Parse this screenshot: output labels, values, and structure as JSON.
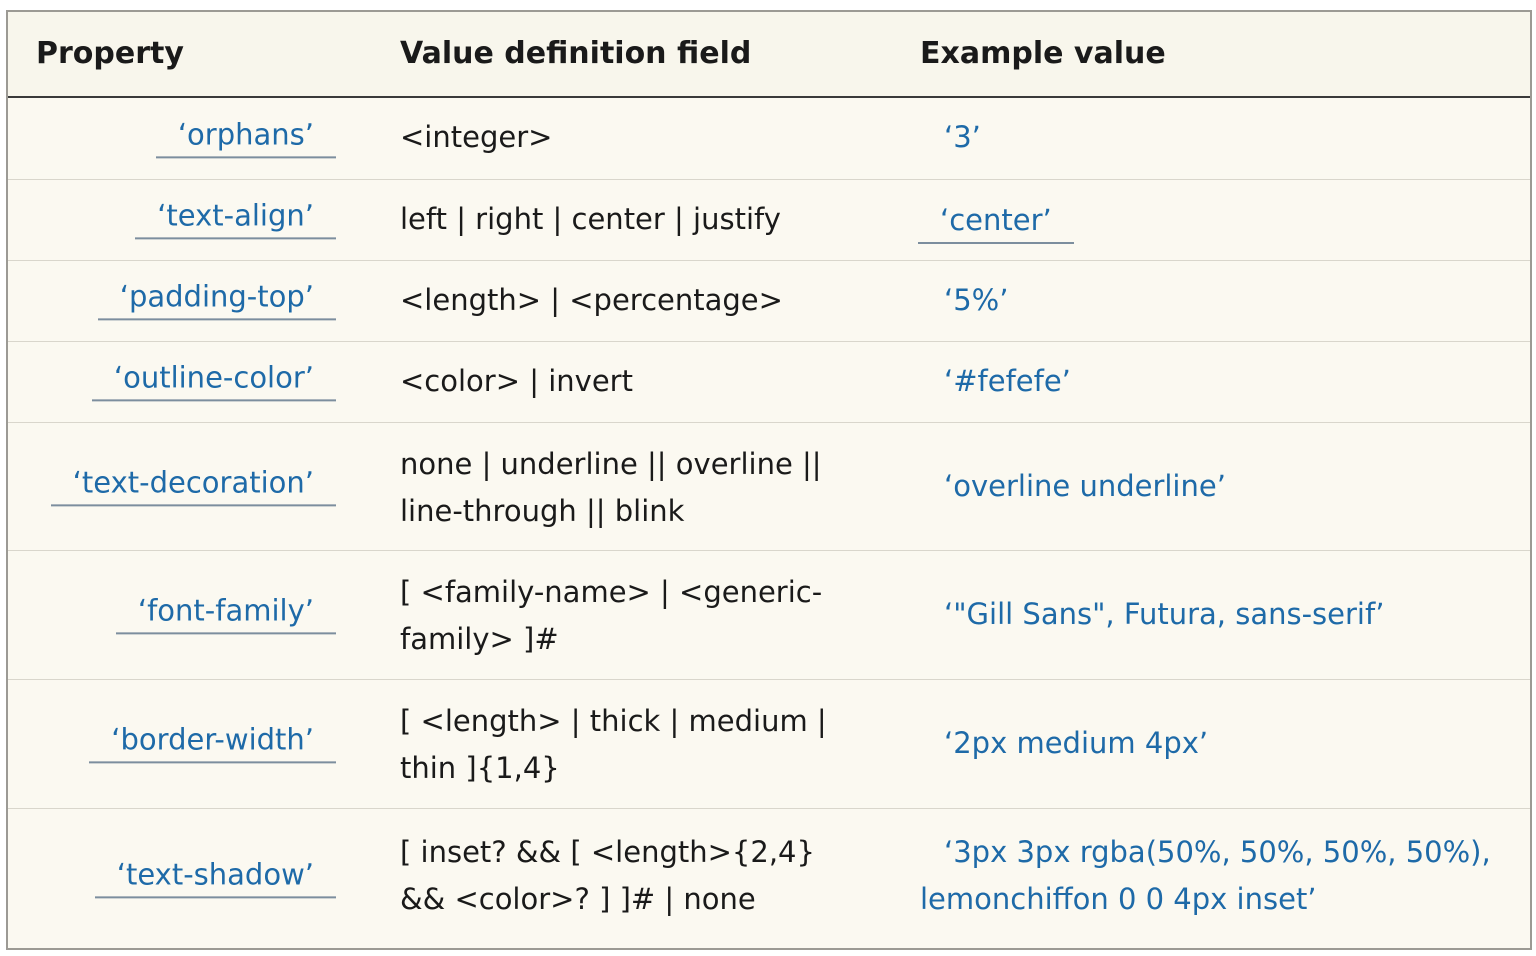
{
  "headers": {
    "property": "Property",
    "definition": "Value definition field",
    "example": "Example value"
  },
  "rows": [
    {
      "property": "‘orphans’",
      "definition": [
        "<integer>"
      ],
      "example": [
        "‘3’"
      ]
    },
    {
      "property": "‘text-align’",
      "definition": [
        "left | right | center | justify"
      ],
      "example": [
        "‘center’"
      ]
    },
    {
      "property": "‘padding-top’",
      "definition": [
        "<length> | <percentage>"
      ],
      "example": [
        "‘5%’"
      ]
    },
    {
      "property": "‘outline-color’",
      "definition": [
        "<color> | invert"
      ],
      "example": [
        "‘#fefefe’"
      ]
    },
    {
      "property": "‘text-decoration’",
      "definition": [
        "none | underline || overline ||",
        "line-through || blink"
      ],
      "example": [
        "‘overline underline’"
      ]
    },
    {
      "property": "‘font-family’",
      "definition": [
        "[ <family-name> | <generic-",
        "family> ]#"
      ],
      "example": [
        "‘\"Gill Sans\", Futura, sans-serif’"
      ]
    },
    {
      "property": "‘border-width’",
      "definition": [
        "[ <length> | thick | medium |",
        "thin ]{1,4}"
      ],
      "example": [
        "‘2px medium 4px’"
      ]
    },
    {
      "property": "‘text-shadow’",
      "definition": [
        "[ inset? && [ <length>{2,4}",
        "&& <color>? ] ]# | none"
      ],
      "example": [
        "‘3px 3px rgba(50%, 50%, 50%, 50%),",
        "lemonchiffon 0 0 4px inset’"
      ]
    }
  ]
}
